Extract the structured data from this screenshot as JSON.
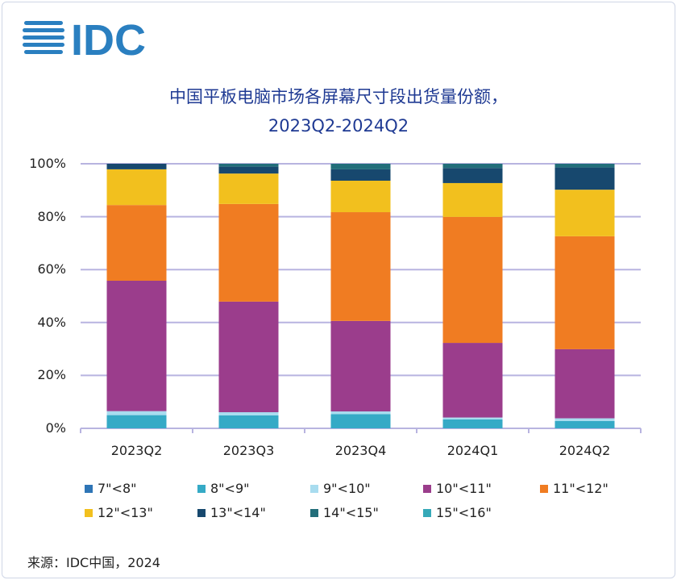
{
  "logo": {
    "text": "IDC",
    "color": "#2a7fc0"
  },
  "chart_data": {
    "type": "bar",
    "stacked": true,
    "title": "中国平板电脑市场各屏幕尺寸段出货量份额，",
    "subtitle": "2023Q2-2024Q2",
    "categories": [
      "2023Q2",
      "2023Q3",
      "2023Q4",
      "2024Q1",
      "2024Q2"
    ],
    "ylim": [
      0,
      100
    ],
    "yticks": [
      "0%",
      "20%",
      "40%",
      "60%",
      "80%",
      "100%"
    ],
    "grid": true,
    "legend_position": "bottom",
    "series": [
      {
        "name": "7\"<8\"",
        "color": "#2e75b6",
        "values": [
          0,
          0,
          0,
          0,
          0
        ]
      },
      {
        "name": "8\"<9\"",
        "color": "#35aac6",
        "values": [
          5.0,
          4.9,
          5.4,
          3.4,
          2.8
        ]
      },
      {
        "name": "9\"<10\"",
        "color": "#a8dcef",
        "values": [
          1.5,
          1.2,
          1.0,
          0.7,
          1.0
        ]
      },
      {
        "name": "10\"<11\"",
        "color": "#9b3d8c",
        "values": [
          49.3,
          41.8,
          34.2,
          28.2,
          26.1
        ]
      },
      {
        "name": "11\"<12\"",
        "color": "#f07c22",
        "values": [
          28.6,
          36.9,
          41.1,
          47.6,
          42.7
        ]
      },
      {
        "name": "12\"<13\"",
        "color": "#f2c01e",
        "values": [
          13.5,
          11.5,
          11.9,
          12.8,
          17.6
        ]
      },
      {
        "name": "13\"<14\"",
        "color": "#17486e",
        "values": [
          2.1,
          2.6,
          4.3,
          5.7,
          8.4
        ]
      },
      {
        "name": "14\"<15\"",
        "color": "#226e7a",
        "values": [
          0,
          1.1,
          2.1,
          1.6,
          1.4
        ]
      },
      {
        "name": "15\"<16\"",
        "color": "#36a9b8",
        "values": [
          0,
          0,
          0,
          0,
          0
        ]
      }
    ]
  },
  "source": "来源：IDC中国，2024"
}
